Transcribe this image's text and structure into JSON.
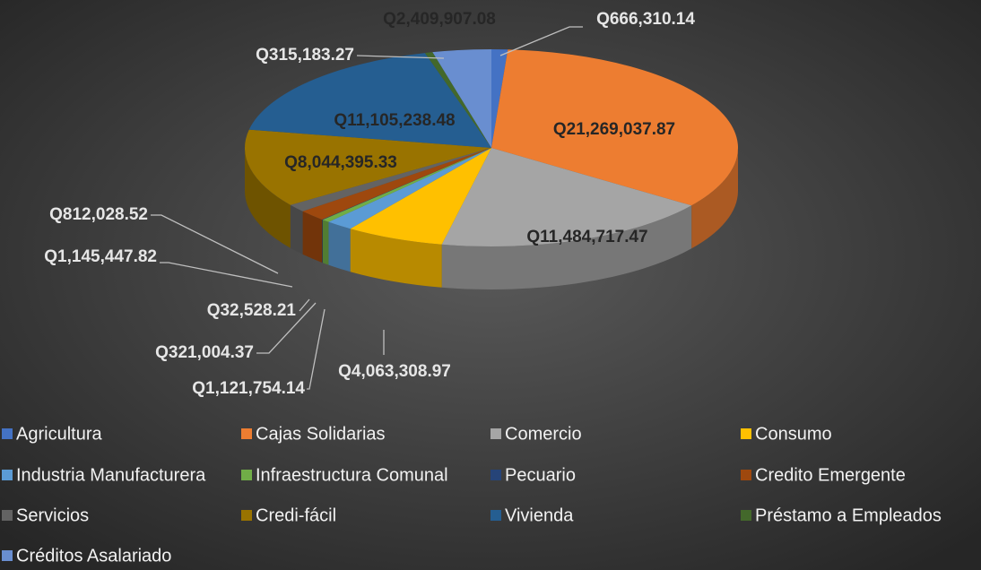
{
  "chart_data": {
    "type": "pie3d",
    "categories": [
      "Agricultura",
      "Cajas Solidarias",
      "Comercio",
      "Consumo",
      "Industria Manufacturera",
      "Infraestructura Comunal",
      "Pecuario",
      "Credito Emergente",
      "Servicios",
      "Credi-fácil",
      "Vivienda",
      "Préstamo a Empleados",
      "Créditos Asalariado"
    ],
    "values": [
      666310.14,
      21269037.87,
      11484717.47,
      4063308.97,
      1121754.14,
      321004.37,
      32528.21,
      1145447.82,
      812028.52,
      8044395.33,
      11105238.48,
      315183.27,
      2409907.08
    ],
    "value_labels": [
      "Q666,310.14",
      "Q21,269,037.87",
      "Q11,484,717.47",
      "Q4,063,308.97",
      "Q1,121,754.14",
      "Q321,004.37",
      "Q32,528.21",
      "Q1,145,447.82",
      "Q812,028.52",
      "Q8,044,395.33",
      "Q11,105,238.48",
      "Q315,183.27",
      "Q2,409,907.08"
    ],
    "colors": [
      "#4472c4",
      "#ed7d31",
      "#a5a5a5",
      "#ffc000",
      "#5b9bd5",
      "#70ad47",
      "#264478",
      "#9e480e",
      "#636363",
      "#997300",
      "#255e91",
      "#43682b",
      "#698ed0"
    ],
    "legend": "bottom"
  }
}
